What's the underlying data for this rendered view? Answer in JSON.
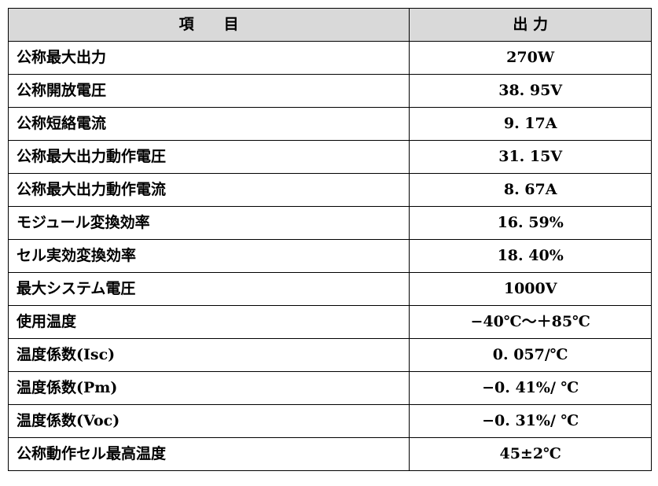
{
  "table": {
    "headers": {
      "item": "項　　目",
      "output": "出 力"
    },
    "rows": [
      {
        "item": "公称最大出力",
        "output": "270W"
      },
      {
        "item": "公称開放電圧",
        "output": "38. 95V"
      },
      {
        "item": "公称短絡電流",
        "output": "9. 17A"
      },
      {
        "item": "公称最大出力動作電圧",
        "output": "31. 15V"
      },
      {
        "item": "公称最大出力動作電流",
        "output": "8. 67A"
      },
      {
        "item": "モジュール変換効率",
        "output": "16. 59%"
      },
      {
        "item": "セル実効変換効率",
        "output": "18. 40%"
      },
      {
        "item": "最大システム電圧",
        "output": "1000V"
      },
      {
        "item": "使用温度",
        "output": "−40℃～＋85℃"
      },
      {
        "item": "温度係数(Isc)",
        "output": "0. 057/℃"
      },
      {
        "item": "温度係数(Pm)",
        "output": "−0. 41%/ ℃"
      },
      {
        "item": "温度係数(Voc)",
        "output": "−0. 31%/ ℃"
      },
      {
        "item": "公称動作セル最高温度",
        "output": "45±2℃"
      }
    ]
  },
  "colors": {
    "header_background": "#d9d9d9",
    "border": "#000000"
  }
}
